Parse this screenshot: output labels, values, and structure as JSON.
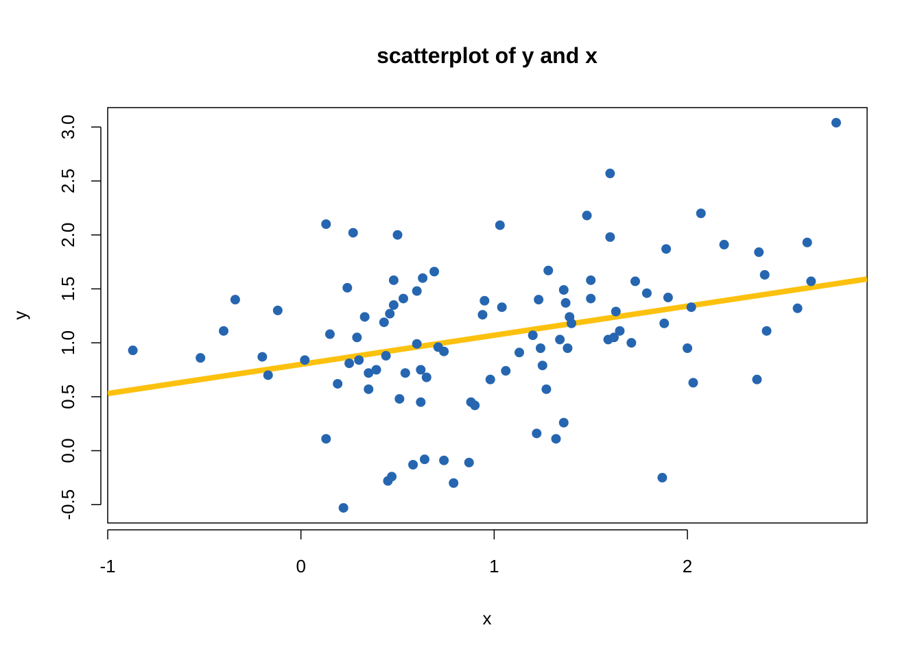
{
  "chart_data": {
    "type": "scatter",
    "title": "scatterplot of y and x",
    "xlabel": "x",
    "ylabel": "y",
    "xlim": [
      -1.0,
      2.93
    ],
    "ylim": [
      -0.67,
      3.18
    ],
    "x_ticks": [
      -1,
      0,
      1,
      2
    ],
    "x_tick_labels": [
      "-1",
      "0",
      "1",
      "2"
    ],
    "y_ticks": [
      -0.5,
      0.0,
      0.5,
      1.0,
      1.5,
      2.0,
      2.5,
      3.0
    ],
    "y_tick_labels": [
      "-0.5",
      "0.0",
      "0.5",
      "1.0",
      "1.5",
      "2.0",
      "2.5",
      "3.0"
    ],
    "grid": false,
    "colors": {
      "points": "#2666b0",
      "fit_line": "#fbc10e",
      "axes": "#000000"
    },
    "fit_line": {
      "name": "",
      "intercept": 0.8,
      "slope": 0.27
    },
    "series": [
      {
        "name": "",
        "points": [
          [
            -0.87,
            0.93
          ],
          [
            -0.52,
            0.86
          ],
          [
            -0.4,
            1.11
          ],
          [
            -0.34,
            1.4
          ],
          [
            -0.2,
            0.87
          ],
          [
            -0.17,
            0.7
          ],
          [
            -0.12,
            1.3
          ],
          [
            0.02,
            0.84
          ],
          [
            0.13,
            2.1
          ],
          [
            0.13,
            0.11
          ],
          [
            0.15,
            1.08
          ],
          [
            0.19,
            0.62
          ],
          [
            0.22,
            -0.53
          ],
          [
            0.24,
            1.51
          ],
          [
            0.25,
            0.81
          ],
          [
            0.27,
            2.02
          ],
          [
            0.29,
            1.05
          ],
          [
            0.3,
            0.84
          ],
          [
            0.33,
            1.24
          ],
          [
            0.35,
            0.72
          ],
          [
            0.35,
            0.57
          ],
          [
            0.39,
            0.75
          ],
          [
            0.43,
            1.19
          ],
          [
            0.44,
            0.88
          ],
          [
            0.45,
            -0.28
          ],
          [
            0.46,
            1.27
          ],
          [
            0.47,
            -0.24
          ],
          [
            0.48,
            1.35
          ],
          [
            0.48,
            1.58
          ],
          [
            0.5,
            2.0
          ],
          [
            0.51,
            0.48
          ],
          [
            0.53,
            1.41
          ],
          [
            0.54,
            0.72
          ],
          [
            0.58,
            -0.13
          ],
          [
            0.6,
            1.48
          ],
          [
            0.6,
            0.99
          ],
          [
            0.62,
            0.75
          ],
          [
            0.62,
            0.45
          ],
          [
            0.63,
            1.6
          ],
          [
            0.64,
            -0.08
          ],
          [
            0.65,
            0.68
          ],
          [
            0.69,
            1.66
          ],
          [
            0.71,
            0.96
          ],
          [
            0.74,
            0.92
          ],
          [
            0.74,
            -0.09
          ],
          [
            0.79,
            -0.3
          ],
          [
            0.87,
            -0.11
          ],
          [
            0.88,
            0.45
          ],
          [
            0.9,
            0.42
          ],
          [
            0.94,
            1.26
          ],
          [
            0.95,
            1.39
          ],
          [
            0.98,
            0.66
          ],
          [
            1.03,
            2.09
          ],
          [
            1.04,
            1.33
          ],
          [
            1.06,
            0.74
          ],
          [
            1.13,
            0.91
          ],
          [
            1.2,
            1.07
          ],
          [
            1.22,
            0.16
          ],
          [
            1.23,
            1.4
          ],
          [
            1.24,
            0.95
          ],
          [
            1.25,
            0.79
          ],
          [
            1.27,
            0.57
          ],
          [
            1.28,
            1.67
          ],
          [
            1.32,
            0.11
          ],
          [
            1.34,
            1.03
          ],
          [
            1.36,
            1.49
          ],
          [
            1.36,
            0.26
          ],
          [
            1.37,
            1.37
          ],
          [
            1.38,
            0.95
          ],
          [
            1.39,
            1.24
          ],
          [
            1.4,
            1.18
          ],
          [
            1.48,
            2.18
          ],
          [
            1.5,
            1.58
          ],
          [
            1.5,
            1.41
          ],
          [
            1.59,
            1.03
          ],
          [
            1.6,
            2.57
          ],
          [
            1.6,
            1.98
          ],
          [
            1.62,
            1.05
          ],
          [
            1.63,
            1.29
          ],
          [
            1.65,
            1.11
          ],
          [
            1.71,
            1.0
          ],
          [
            1.73,
            1.57
          ],
          [
            1.79,
            1.46
          ],
          [
            1.87,
            -0.25
          ],
          [
            1.88,
            1.18
          ],
          [
            1.89,
            1.87
          ],
          [
            1.9,
            1.42
          ],
          [
            2.0,
            0.95
          ],
          [
            2.02,
            1.33
          ],
          [
            2.03,
            0.63
          ],
          [
            2.07,
            2.2
          ],
          [
            2.19,
            1.91
          ],
          [
            2.36,
            0.66
          ],
          [
            2.37,
            1.84
          ],
          [
            2.4,
            1.63
          ],
          [
            2.41,
            1.11
          ],
          [
            2.57,
            1.32
          ],
          [
            2.62,
            1.93
          ],
          [
            2.64,
            1.57
          ],
          [
            2.77,
            3.04
          ]
        ]
      }
    ]
  }
}
